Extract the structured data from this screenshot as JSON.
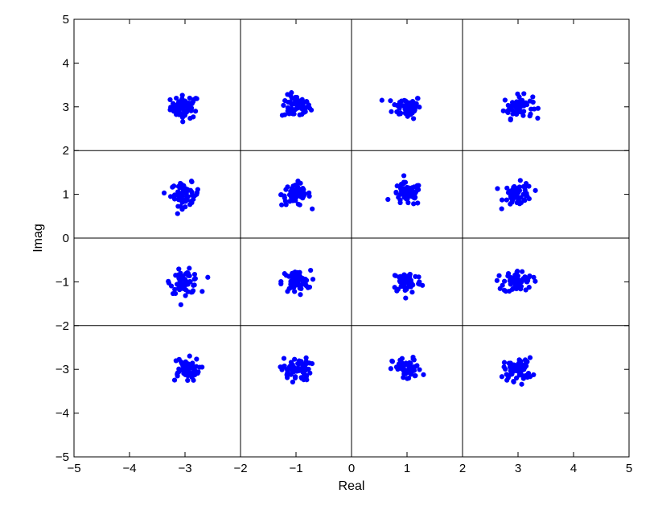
{
  "chart_data": {
    "type": "scatter",
    "xlabel": "Real",
    "ylabel": "Imag",
    "xlim": [
      -5,
      5
    ],
    "ylim": [
      -5,
      5
    ],
    "xticks": [
      -5,
      -4,
      -3,
      -2,
      -1,
      0,
      1,
      2,
      3,
      4,
      5
    ],
    "yticks": [
      -5,
      -4,
      -3,
      -2,
      -1,
      0,
      1,
      2,
      3,
      4,
      5
    ],
    "xtick_labels": [
      "−5",
      "−4",
      "−3",
      "−2",
      "−1",
      "0",
      "1",
      "2",
      "3",
      "4",
      "5"
    ],
    "ytick_labels": [
      "−5",
      "−4",
      "−3",
      "−2",
      "−1",
      "0",
      "1",
      "2",
      "3",
      "4",
      "5"
    ],
    "decision_lines_x": [
      -2,
      0,
      2
    ],
    "decision_lines_y": [
      -2,
      0,
      2
    ],
    "marker_color": "#0000ff",
    "constellation_points": [
      {
        "x": -3,
        "y": 3
      },
      {
        "x": -1,
        "y": 3
      },
      {
        "x": 1,
        "y": 3
      },
      {
        "x": 3,
        "y": 3
      },
      {
        "x": -3,
        "y": 1
      },
      {
        "x": -1,
        "y": 1
      },
      {
        "x": 1,
        "y": 1
      },
      {
        "x": 3,
        "y": 1
      },
      {
        "x": -3,
        "y": -1
      },
      {
        "x": -1,
        "y": -1
      },
      {
        "x": 1,
        "y": -1
      },
      {
        "x": 3,
        "y": -1
      },
      {
        "x": -3,
        "y": -3
      },
      {
        "x": -1,
        "y": -3
      },
      {
        "x": 1,
        "y": -3
      },
      {
        "x": 3,
        "y": -3
      }
    ],
    "points_per_symbol": 60,
    "noise_spread": 0.13
  }
}
